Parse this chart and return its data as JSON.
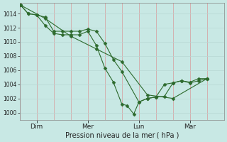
{
  "bg_color": "#c8e8e4",
  "line_color": "#2d6a2d",
  "marker_color": "#2d6a2d",
  "ylim": [
    999.0,
    1015.5
  ],
  "yticks": [
    1000,
    1002,
    1004,
    1006,
    1008,
    1010,
    1012,
    1014
  ],
  "xlabel": "Pression niveau de la mer ( hPa )",
  "xtick_labels": [
    "Dim",
    "Mer",
    "Lun",
    "Mar"
  ],
  "xtick_positions": [
    1,
    4,
    7,
    10
  ],
  "xlim": [
    0,
    12.0
  ],
  "num_vgrid": 13,
  "num_hgrid": 9,
  "vgrid_color": "#d4a8a8",
  "hgrid_color": "#b8d8d4",
  "line1_x": [
    0.05,
    0.5,
    1.0,
    1.5,
    2.0,
    2.5,
    3.0,
    3.5,
    4.0,
    4.5,
    5.0,
    5.5,
    6.0,
    7.0,
    7.5,
    8.0,
    8.5,
    9.0,
    9.5,
    10.0,
    10.5,
    11.0
  ],
  "line1_y": [
    1015.2,
    1014.0,
    1013.8,
    1013.5,
    1011.5,
    1011.5,
    1011.5,
    1011.5,
    1011.8,
    1011.5,
    1009.8,
    1007.5,
    1005.8,
    1001.5,
    1002.0,
    1002.2,
    1002.3,
    1004.2,
    1004.5,
    1004.3,
    1004.8,
    1004.8
  ],
  "line2_x": [
    0.05,
    0.5,
    1.0,
    1.5,
    2.0,
    2.5,
    3.0,
    3.5,
    4.0,
    4.5,
    5.0,
    5.5,
    6.0,
    6.3,
    6.7,
    7.0,
    7.5,
    8.0,
    8.5,
    9.0,
    9.5,
    10.0,
    10.5,
    11.0
  ],
  "line2_y": [
    1015.2,
    1014.0,
    1013.8,
    1012.3,
    1011.2,
    1011.0,
    1011.0,
    1011.0,
    1011.5,
    1009.5,
    1006.3,
    1004.3,
    1001.2,
    1001.0,
    999.8,
    1001.5,
    1002.0,
    1002.2,
    1004.0,
    1004.2,
    1004.5,
    1004.2,
    1004.5,
    1004.8
  ],
  "line3_x": [
    0.05,
    1.5,
    3.0,
    4.5,
    6.0,
    7.5,
    9.0,
    11.0
  ],
  "line3_y": [
    1015.2,
    1013.3,
    1010.8,
    1009.0,
    1007.2,
    1002.5,
    1002.0,
    1004.8
  ]
}
